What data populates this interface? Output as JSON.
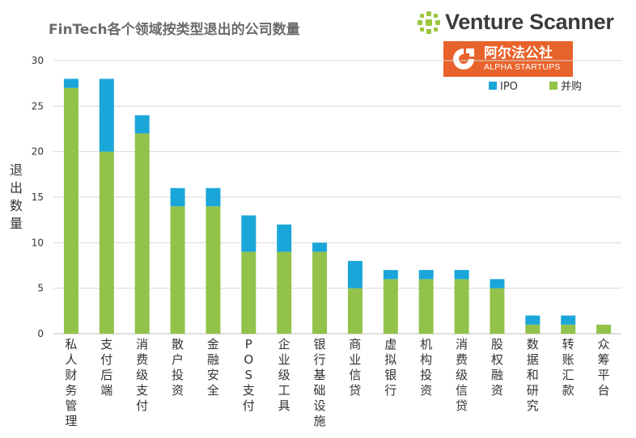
{
  "title": "FinTech各个领域按类型退出的公司数量",
  "brand": {
    "name": "Venture Scanner",
    "partner_cn": "阿尔法公社",
    "partner_en": "ALPHA STARTUPS",
    "partner_color": "#e8632b",
    "logo_color": "#9cc63b"
  },
  "chart_data": {
    "type": "bar",
    "stacked": true,
    "ylabel": "退出数量",
    "ylim": [
      0,
      30
    ],
    "yticks": [
      0,
      5,
      10,
      15,
      20,
      25,
      30
    ],
    "grid": true,
    "legend_position": "top-right",
    "categories": [
      "私人财务管理",
      "支付后端",
      "消费级支付",
      "散户投资",
      "金融安全",
      "POS支付",
      "企业级工具",
      "银行基础设施",
      "商业信贷",
      "虚拟银行",
      "机构投资",
      "消费级信贷",
      "股权融资",
      "数据和研究",
      "转账汇款",
      "众筹平台"
    ],
    "series": [
      {
        "name": "并购",
        "color": "#92c24a",
        "values": [
          27,
          20,
          22,
          14,
          14,
          9,
          9,
          9,
          5,
          6,
          6,
          6,
          5,
          1,
          1,
          1
        ]
      },
      {
        "name": "IPO",
        "color": "#1ba6d9",
        "values": [
          1,
          8,
          2,
          2,
          2,
          4,
          3,
          1,
          3,
          1,
          1,
          1,
          1,
          1,
          1,
          0
        ]
      }
    ]
  }
}
